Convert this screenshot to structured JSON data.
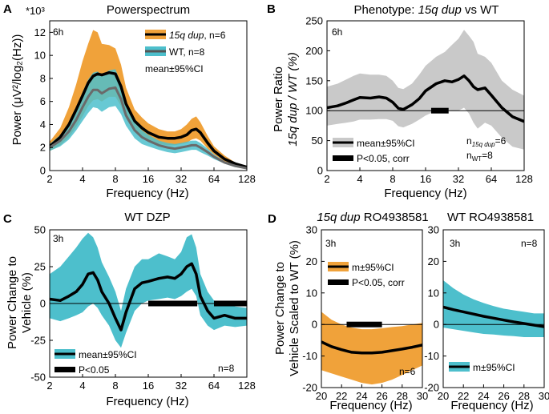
{
  "colors": {
    "orange": "#f0a23a",
    "teal": "#4dbfcc",
    "gray_band": "#c9c9c9",
    "ink": "#000000",
    "mean_gray": "#6a6a6a",
    "wt_line": "#555555"
  },
  "panels": {
    "A": {
      "letter": "A",
      "title": "Powerspectrum",
      "exp": "*10³",
      "ylabel": "Power (μV²/log₂(Hz))",
      "xlabel": "Frequency (Hz)",
      "time": "6h",
      "legend": {
        "dup": "15q dup",
        "dup_n": ", n=6",
        "wt": "WT, n=8",
        "stat": "mean±95%CI"
      }
    },
    "B": {
      "letter": "B",
      "title_a": "Phenotype: ",
      "title_b": "15q dup",
      "title_c": " vs WT",
      "ylabel1": "Power Ratio",
      "ylabel2": "15q dup / WT (%)",
      "xlabel": "Frequency (Hz)",
      "time": "6h",
      "legend": {
        "band": "mean±95%CI",
        "sig": "P<0.05, corr"
      },
      "n1": "n15q dup=6",
      "n1_base": "n",
      "n1_sub": "15q dup",
      "n1_val": "=6",
      "n2_base": "n",
      "n2_sub": "WT",
      "n2_val": "=8"
    },
    "C": {
      "letter": "C",
      "title": "WT DZP",
      "ylabel1": "Power Change to",
      "ylabel2": "Vehicle (%)",
      "xlabel": "Frequency (Hz)",
      "time": "3h",
      "n": "n=8",
      "legend": {
        "band": "mean±95%CI",
        "sig": "P<0.05"
      }
    },
    "D": {
      "letter": "D",
      "title_left_a": "15q dup",
      "title_left_b": " RO4938581",
      "title_right": "WT RO4938581",
      "ylabel1": "Power Change to",
      "ylabel2": "Vehicle Scaled to WT (%)",
      "xlabel_left": "Frequency (Hz)",
      "xlabel_right": "Frequency (Hz)",
      "time_left": "3h",
      "time_right": "3h",
      "n_left": "n=6",
      "n_right": "n=8",
      "legend_left": {
        "band": "m±95%CI",
        "sig": "P<0.05, corr"
      },
      "legend_right": {
        "band": "m±95%CI"
      }
    }
  },
  "chart_data": [
    {
      "panel": "A",
      "type": "line",
      "x_scale": "log2",
      "xlim": [
        2,
        128
      ],
      "ylim": [
        0,
        13000
      ],
      "xticks": [
        2,
        4,
        8,
        16,
        32,
        64,
        128
      ],
      "yticks": [
        0,
        2,
        4,
        6,
        8,
        10,
        12
      ],
      "y_multiplier": "10^3",
      "series": [
        {
          "name": "15q dup, n=6",
          "x": [
            2,
            2.5,
            3,
            3.5,
            4,
            4.5,
            5,
            5.5,
            6,
            7,
            8,
            9,
            10,
            12,
            14,
            16,
            20,
            24,
            28,
            32,
            36,
            40,
            44,
            48,
            56,
            64,
            80,
            100,
            128
          ],
          "mean": [
            2.1,
            2.9,
            4.0,
            5.3,
            6.5,
            7.6,
            8.2,
            8.4,
            8.3,
            8.5,
            8.4,
            7.3,
            5.8,
            4.3,
            3.7,
            3.3,
            2.9,
            2.8,
            2.8,
            2.9,
            3.1,
            3.5,
            3.6,
            3.3,
            2.4,
            1.7,
            1.0,
            0.6,
            0.3
          ],
          "lo": [
            1.7,
            2.2,
            2.9,
            3.8,
            4.7,
            5.6,
            6.1,
            6.2,
            6.0,
            6.4,
            6.4,
            5.6,
            4.5,
            3.4,
            2.9,
            2.6,
            2.3,
            2.2,
            2.2,
            2.3,
            2.4,
            2.7,
            2.8,
            2.6,
            1.9,
            1.4,
            0.8,
            0.5,
            0.2
          ],
          "hi": [
            2.5,
            3.7,
            5.5,
            7.5,
            9.5,
            11.0,
            12.2,
            12.0,
            11.0,
            10.9,
            10.6,
            9.2,
            7.2,
            5.3,
            4.6,
            4.1,
            3.6,
            3.4,
            3.4,
            3.6,
            4.0,
            4.5,
            4.7,
            4.2,
            3.0,
            2.1,
            1.3,
            0.7,
            0.4
          ]
        },
        {
          "name": "WT, n=8",
          "x": [
            2,
            2.5,
            3,
            3.5,
            4,
            4.5,
            5,
            5.5,
            6,
            7,
            8,
            9,
            10,
            12,
            14,
            16,
            20,
            24,
            28,
            32,
            36,
            40,
            44,
            48,
            56,
            64,
            80,
            100,
            128
          ],
          "mean": [
            2.0,
            2.6,
            3.4,
            4.4,
            5.5,
            6.4,
            7.0,
            7.0,
            6.7,
            7.1,
            7.2,
            6.2,
            4.8,
            3.5,
            2.9,
            2.6,
            2.2,
            2.0,
            1.9,
            2.0,
            2.1,
            2.2,
            2.2,
            2.0,
            1.6,
            1.2,
            0.7,
            0.4,
            0.2
          ],
          "lo": [
            1.7,
            2.1,
            2.7,
            3.5,
            4.3,
            5.0,
            5.5,
            5.4,
            5.1,
            5.5,
            5.6,
            4.9,
            3.9,
            2.8,
            2.3,
            2.1,
            1.8,
            1.6,
            1.5,
            1.6,
            1.7,
            1.8,
            1.8,
            1.6,
            1.3,
            1.0,
            0.6,
            0.3,
            0.15
          ],
          "hi": [
            2.3,
            3.1,
            4.2,
            5.4,
            6.8,
            7.9,
            8.5,
            8.6,
            8.3,
            8.7,
            8.8,
            7.6,
            5.8,
            4.2,
            3.5,
            3.1,
            2.6,
            2.4,
            2.3,
            2.4,
            2.5,
            2.6,
            2.6,
            2.4,
            1.9,
            1.4,
            0.8,
            0.5,
            0.25
          ]
        }
      ]
    },
    {
      "panel": "B",
      "type": "line",
      "x_scale": "log2",
      "xlim": [
        2,
        128
      ],
      "ylim": [
        0,
        250
      ],
      "xticks": [
        2,
        4,
        8,
        16,
        32,
        64,
        128
      ],
      "yticks": [
        0,
        50,
        100,
        150,
        200,
        250
      ],
      "reference_line": 100,
      "series": [
        {
          "name": "mean±95%CI",
          "x": [
            2,
            2.5,
            3,
            3.5,
            4,
            5,
            6,
            7,
            8,
            9,
            10,
            12,
            14,
            16,
            20,
            24,
            28,
            32,
            36,
            40,
            44,
            48,
            56,
            64,
            80,
            100,
            128
          ],
          "mean": [
            105,
            108,
            113,
            118,
            122,
            121,
            123,
            121,
            114,
            104,
            102,
            110,
            120,
            133,
            145,
            150,
            148,
            152,
            158,
            150,
            140,
            135,
            138,
            126,
            105,
            90,
            82
          ],
          "lo": [
            75,
            78,
            80,
            82,
            85,
            85,
            86,
            86,
            83,
            74,
            72,
            78,
            85,
            92,
            100,
            103,
            100,
            100,
            105,
            95,
            80,
            70,
            80,
            75,
            55,
            40,
            35
          ],
          "hi": [
            140,
            145,
            152,
            158,
            162,
            160,
            160,
            158,
            150,
            138,
            136,
            145,
            160,
            175,
            190,
            198,
            210,
            220,
            235,
            225,
            215,
            195,
            190,
            180,
            150,
            135,
            125
          ]
        }
      ],
      "significance": [
        [
          18,
          26
        ]
      ]
    },
    {
      "panel": "C",
      "type": "line",
      "x_scale": "log2",
      "xlim": [
        2,
        128
      ],
      "ylim": [
        -50,
        50
      ],
      "xticks": [
        2,
        4,
        8,
        16,
        32,
        64,
        128
      ],
      "yticks": [
        -50,
        -25,
        0,
        25,
        50
      ],
      "reference_line": 0,
      "series": [
        {
          "name": "mean±95%CI",
          "x": [
            2,
            2.5,
            3,
            3.5,
            4,
            4.5,
            5,
            5.5,
            6,
            7,
            8,
            9,
            10,
            12,
            14,
            16,
            20,
            24,
            28,
            32,
            36,
            40,
            44,
            48,
            56,
            64,
            80,
            100,
            128
          ],
          "mean": [
            3,
            2,
            5,
            8,
            13,
            20,
            21,
            16,
            8,
            0,
            -10,
            -18,
            -6,
            10,
            14,
            15,
            17,
            18,
            17,
            20,
            25,
            27,
            20,
            5,
            -5,
            -10,
            -8,
            -10,
            -10
          ],
          "lo": [
            -10,
            -12,
            -10,
            -8,
            -6,
            -2,
            0,
            -3,
            -8,
            -15,
            -25,
            -30,
            -20,
            -5,
            0,
            2,
            3,
            4,
            3,
            5,
            8,
            10,
            5,
            -8,
            -15,
            -18,
            -15,
            -16,
            -15
          ],
          "hi": [
            20,
            25,
            32,
            38,
            44,
            48,
            45,
            38,
            28,
            18,
            8,
            -5,
            10,
            25,
            30,
            30,
            34,
            32,
            30,
            35,
            45,
            47,
            38,
            20,
            8,
            2,
            0,
            -2,
            -3
          ]
        }
      ],
      "significance": [
        [
          16,
          45
        ],
        [
          64,
          128
        ]
      ]
    },
    {
      "panel": "D-left",
      "type": "line",
      "title": "15q dup RO4938581",
      "xlim": [
        20,
        30
      ],
      "ylim": [
        -20,
        30
      ],
      "xticks": [
        20,
        22,
        24,
        26,
        28,
        30
      ],
      "yticks": [
        -20,
        -10,
        0,
        10,
        20,
        30
      ],
      "reference_line": 0,
      "series": [
        {
          "name": "m±95%CI",
          "x": [
            20,
            21,
            22,
            23,
            24,
            25,
            26,
            27,
            28,
            29,
            30
          ],
          "mean": [
            -5.5,
            -7,
            -8,
            -8.8,
            -9,
            -9,
            -8.8,
            -8.3,
            -7.8,
            -7.2,
            -6.5
          ],
          "lo": [
            -14.5,
            -15.5,
            -16.5,
            -17.5,
            -18.5,
            -19,
            -18.5,
            -17.5,
            -16,
            -14.5,
            -13
          ],
          "hi": [
            4,
            1.5,
            0,
            -1,
            -1.5,
            -1.5,
            -1.2,
            -0.8,
            -0.5,
            0,
            0.5
          ]
        }
      ],
      "significance": [
        [
          22.5,
          26
        ]
      ]
    },
    {
      "panel": "D-right",
      "type": "line",
      "title": "WT RO4938581",
      "xlim": [
        20,
        30
      ],
      "ylim": [
        -20,
        30
      ],
      "xticks": [
        20,
        22,
        24,
        26,
        28,
        30
      ],
      "yticks": [
        -20,
        -10,
        0,
        10,
        20,
        30
      ],
      "reference_line": 0,
      "series": [
        {
          "name": "m±95%CI",
          "x": [
            20,
            21,
            22,
            23,
            24,
            25,
            26,
            27,
            28,
            29,
            30
          ],
          "mean": [
            5.5,
            4.7,
            4.0,
            3.3,
            2.6,
            2.0,
            1.4,
            0.8,
            0.3,
            -0.2,
            -0.7
          ],
          "lo": [
            -1,
            -1.5,
            -2,
            -2.5,
            -3,
            -3.2,
            -3.5,
            -3.7,
            -4,
            -4,
            -4
          ],
          "hi": [
            14,
            11.5,
            9.5,
            8,
            6.8,
            5.8,
            5,
            4.5,
            4,
            3.5,
            3.5
          ]
        }
      ]
    }
  ]
}
